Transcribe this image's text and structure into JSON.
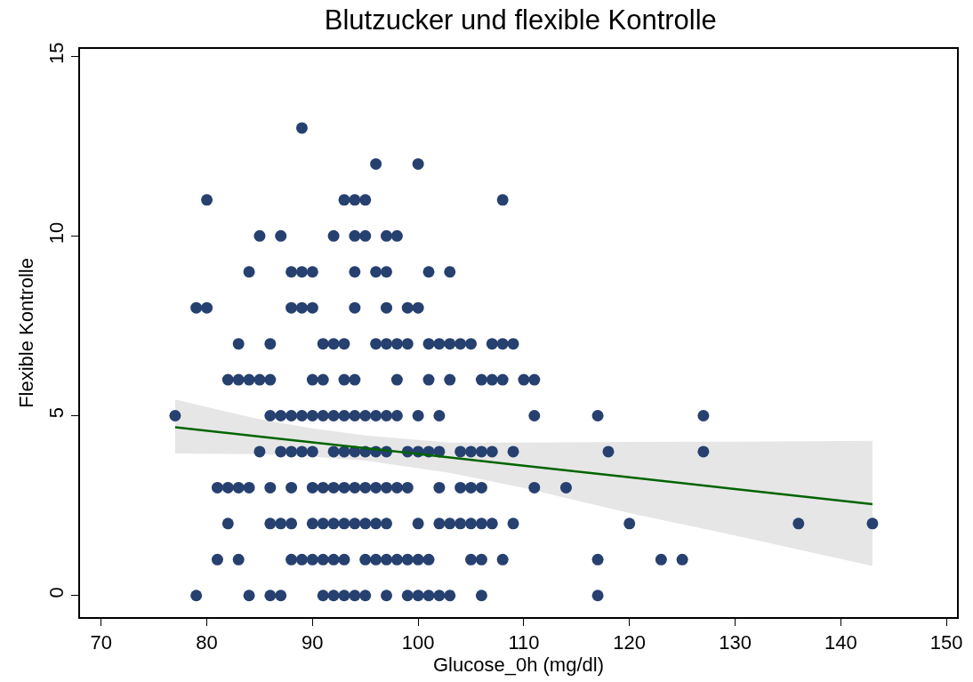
{
  "chart_data": {
    "type": "scatter",
    "title": "Blutzucker und flexible Kontrolle",
    "xlabel": "Glucose_0h (mg/dl)",
    "ylabel": "Flexible Kontrolle",
    "xlim": [
      68,
      151
    ],
    "xticks": [
      70,
      80,
      90,
      100,
      110,
      120,
      130,
      140,
      150
    ],
    "ylim": [
      -0.6,
      15.2
    ],
    "yticks": [
      0,
      5,
      10,
      15
    ],
    "marker": "circle",
    "series": [
      {
        "color": "#26406f",
        "x": [
          89,
          96,
          100,
          80,
          93,
          94,
          95,
          108,
          85,
          87,
          92,
          94,
          95,
          97,
          98,
          84,
          88,
          89,
          90,
          94,
          96,
          97,
          101,
          103,
          79,
          80,
          88,
          89,
          90,
          94,
          97,
          99,
          100,
          83,
          86,
          91,
          92,
          93,
          96,
          97,
          98,
          99,
          101,
          102,
          103,
          104,
          105,
          107,
          108,
          109,
          82,
          83,
          84,
          85,
          86,
          90,
          91,
          93,
          94,
          98,
          101,
          103,
          106,
          107,
          108,
          110,
          111,
          77,
          86,
          87,
          88,
          89,
          90,
          91,
          92,
          93,
          94,
          95,
          96,
          97,
          98,
          100,
          102,
          111,
          117,
          127,
          85,
          87,
          88,
          89,
          90,
          92,
          93,
          94,
          95,
          96,
          97,
          99,
          100,
          101,
          102,
          104,
          105,
          106,
          107,
          109,
          118,
          127,
          81,
          82,
          83,
          84,
          86,
          88,
          90,
          91,
          92,
          93,
          94,
          95,
          96,
          97,
          98,
          99,
          102,
          104,
          105,
          106,
          111,
          114,
          82,
          86,
          87,
          88,
          90,
          91,
          92,
          93,
          94,
          95,
          96,
          97,
          100,
          102,
          103,
          104,
          105,
          106,
          107,
          109,
          120,
          136,
          143,
          81,
          83,
          88,
          89,
          90,
          91,
          92,
          93,
          95,
          96,
          97,
          98,
          99,
          100,
          101,
          105,
          106,
          108,
          117,
          123,
          125,
          79,
          84,
          86,
          87,
          91,
          92,
          93,
          94,
          95,
          97,
          99,
          100,
          101,
          102,
          103,
          106,
          117
        ],
        "values": [
          13,
          12,
          12,
          11,
          11,
          11,
          11,
          11,
          10,
          10,
          10,
          10,
          10,
          10,
          10,
          9,
          9,
          9,
          9,
          9,
          9,
          9,
          9,
          9,
          8,
          8,
          8,
          8,
          8,
          8,
          8,
          8,
          8,
          7,
          7,
          7,
          7,
          7,
          7,
          7,
          7,
          7,
          7,
          7,
          7,
          7,
          7,
          7,
          7,
          7,
          6,
          6,
          6,
          6,
          6,
          6,
          6,
          6,
          6,
          6,
          6,
          6,
          6,
          6,
          6,
          6,
          6,
          5,
          5,
          5,
          5,
          5,
          5,
          5,
          5,
          5,
          5,
          5,
          5,
          5,
          5,
          5,
          5,
          5,
          5,
          5,
          4,
          4,
          4,
          4,
          4,
          4,
          4,
          4,
          4,
          4,
          4,
          4,
          4,
          4,
          4,
          4,
          4,
          4,
          4,
          4,
          4,
          4,
          3,
          3,
          3,
          3,
          3,
          3,
          3,
          3,
          3,
          3,
          3,
          3,
          3,
          3,
          3,
          3,
          3,
          3,
          3,
          3,
          3,
          3,
          2,
          2,
          2,
          2,
          2,
          2,
          2,
          2,
          2,
          2,
          2,
          2,
          2,
          2,
          2,
          2,
          2,
          2,
          2,
          2,
          2,
          2,
          2,
          1,
          1,
          1,
          1,
          1,
          1,
          1,
          1,
          1,
          1,
          1,
          1,
          1,
          1,
          1,
          1,
          1,
          1,
          1,
          1,
          1,
          0,
          0,
          0,
          0,
          0,
          0,
          0,
          0,
          0,
          0,
          0,
          0,
          0,
          0,
          0,
          0,
          0
        ]
      },
      {
        "type": "line",
        "color": "#006400",
        "marker": "none",
        "line_style": "solid",
        "x": [
          77,
          85,
          90,
          95,
          103,
          110,
          120,
          130,
          143
        ],
        "values": [
          4.68,
          4.42,
          4.26,
          4.1,
          3.84,
          3.61,
          3.29,
          2.96,
          2.54
        ],
        "lower": [
          3.95,
          3.93,
          3.86,
          3.75,
          3.41,
          2.99,
          2.29,
          1.67,
          0.82
        ],
        "upper": [
          5.45,
          4.9,
          4.65,
          4.45,
          4.25,
          4.25,
          4.27,
          4.28,
          4.3
        ]
      }
    ]
  }
}
